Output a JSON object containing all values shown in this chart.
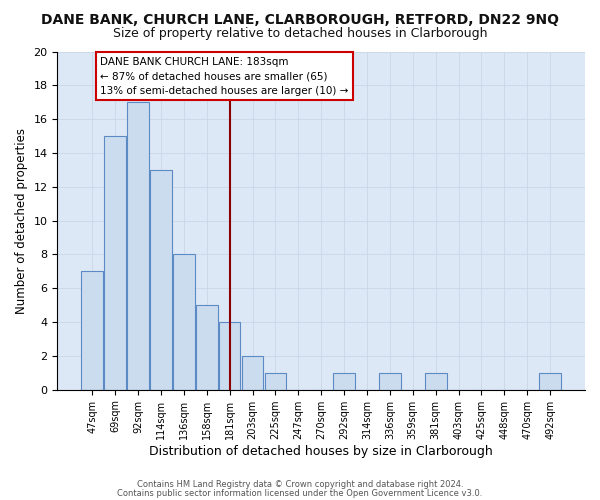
{
  "title": "DANE BANK, CHURCH LANE, CLARBOROUGH, RETFORD, DN22 9NQ",
  "subtitle": "Size of property relative to detached houses in Clarborough",
  "xlabel": "Distribution of detached houses by size in Clarborough",
  "ylabel": "Number of detached properties",
  "categories": [
    "47sqm",
    "69sqm",
    "92sqm",
    "114sqm",
    "136sqm",
    "158sqm",
    "181sqm",
    "203sqm",
    "225sqm",
    "247sqm",
    "270sqm",
    "292sqm",
    "314sqm",
    "336sqm",
    "359sqm",
    "381sqm",
    "403sqm",
    "425sqm",
    "448sqm",
    "470sqm",
    "492sqm"
  ],
  "values": [
    7,
    15,
    17,
    13,
    8,
    5,
    4,
    2,
    1,
    0,
    0,
    1,
    0,
    1,
    0,
    1,
    0,
    0,
    0,
    0,
    1
  ],
  "bar_color": "#ccdcef",
  "bar_edge_color": "#5b8ac5",
  "subject_line_idx": 6,
  "subject_line_color": "#8b0000",
  "annotation_line0": "DANE BANK CHURCH LANE: 183sqm",
  "annotation_line1": "← 87% of detached houses are smaller (65)",
  "annotation_line2": "13% of semi-detached houses are larger (10) →",
  "annotation_box_facecolor": "#ffffff",
  "annotation_border_color": "#cc0000",
  "footer1": "Contains HM Land Registry data © Crown copyright and database right 2024.",
  "footer2": "Contains public sector information licensed under the Open Government Licence v3.0.",
  "ylim": [
    0,
    20
  ],
  "yticks": [
    0,
    2,
    4,
    6,
    8,
    10,
    12,
    14,
    16,
    18,
    20
  ],
  "grid_color": "#c8d8e8",
  "background_color": "#dce8f5",
  "title_fontsize": 10,
  "subtitle_fontsize": 9
}
